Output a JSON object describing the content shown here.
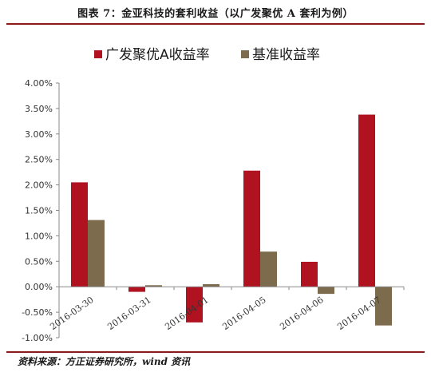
{
  "figure": {
    "title": "图表 7：金亚科技的套利收益（以广发聚优 A 套利为例）",
    "source": "资料来源：方正证券研究所，wind 资讯"
  },
  "colors": {
    "series_1": "#b01220",
    "series_2": "#7d6b4e",
    "rule": "#8b1a1a",
    "axis": "#888888"
  },
  "chart_data": {
    "type": "bar",
    "categories": [
      "2016-03-30",
      "2016-03-31",
      "2016-04-01",
      "2016-04-05",
      "2016-04-06",
      "2016-04-07"
    ],
    "series": [
      {
        "name": "广发聚优A收益率",
        "values": [
          2.05,
          -0.1,
          -0.7,
          2.28,
          0.49,
          3.38
        ]
      },
      {
        "name": "基准收益率",
        "values": [
          1.31,
          0.03,
          0.05,
          0.69,
          -0.14,
          -0.76
        ]
      }
    ],
    "ylim": [
      -1.0,
      4.0
    ],
    "yticks": [
      "4.00%",
      "3.50%",
      "3.00%",
      "2.50%",
      "2.00%",
      "1.50%",
      "1.00%",
      "0.50%",
      "0.00%",
      "-0.50%",
      "-1.00%"
    ],
    "ytick_values": [
      4.0,
      3.5,
      3.0,
      2.5,
      2.0,
      1.5,
      1.0,
      0.5,
      0.0,
      -0.5,
      -1.0
    ],
    "xlabel": "",
    "ylabel": "",
    "grid": false,
    "legend_position": "top-center"
  }
}
